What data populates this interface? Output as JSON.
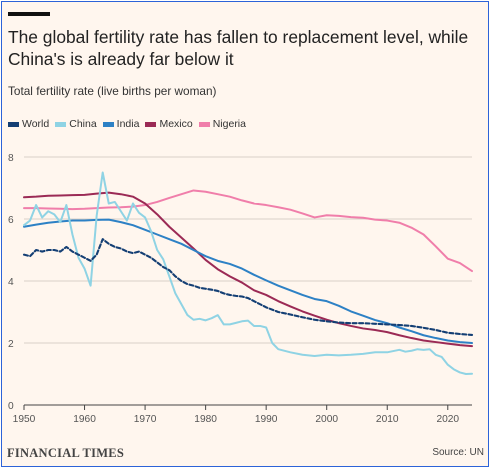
{
  "header": {
    "title": "The global fertility rate has fallen to replacement level, while China's is already far below it",
    "subtitle": "Total fertility rate (live births per woman)"
  },
  "footer": {
    "brand": "FINANCIAL TIMES",
    "source": "Source: UN"
  },
  "colors": {
    "background": "#fff6ee",
    "world": "#143f74",
    "china": "#8fd3e4",
    "india": "#2d81c5",
    "mexico": "#9b2a55",
    "nigeria": "#f07eaa",
    "text": "#222222",
    "grid": "#d9d0c8",
    "border": "#2d63d8"
  },
  "chart_data": {
    "type": "line",
    "title": "The global fertility rate has fallen to replacement level, while China's is already far below it",
    "subtitle": "Total fertility rate (live births per woman)",
    "xlabel": "",
    "ylabel": "Total fertility rate (live births per woman)",
    "xlim": [
      1950,
      2024
    ],
    "ylim": [
      0,
      8
    ],
    "xticks": [
      1950,
      1960,
      1970,
      1980,
      1990,
      2000,
      2010,
      2020
    ],
    "yticks": [
      0,
      2,
      4,
      6,
      8
    ],
    "legend": "top-left",
    "grid": true,
    "series": [
      {
        "name": "World",
        "color": "#143f74",
        "dash": true,
        "points": [
          [
            1950,
            4.85
          ],
          [
            1951,
            4.8
          ],
          [
            1952,
            5.0
          ],
          [
            1953,
            4.95
          ],
          [
            1954,
            5.0
          ],
          [
            1955,
            5.0
          ],
          [
            1956,
            4.95
          ],
          [
            1957,
            5.1
          ],
          [
            1958,
            4.95
          ],
          [
            1959,
            4.85
          ],
          [
            1960,
            4.75
          ],
          [
            1961,
            4.65
          ],
          [
            1962,
            4.85
          ],
          [
            1963,
            5.35
          ],
          [
            1964,
            5.2
          ],
          [
            1965,
            5.1
          ],
          [
            1966,
            5.05
          ],
          [
            1967,
            4.95
          ],
          [
            1968,
            4.9
          ],
          [
            1969,
            4.95
          ],
          [
            1970,
            4.85
          ],
          [
            1971,
            4.75
          ],
          [
            1972,
            4.6
          ],
          [
            1973,
            4.45
          ],
          [
            1974,
            4.35
          ],
          [
            1975,
            4.15
          ],
          [
            1976,
            4.0
          ],
          [
            1977,
            3.9
          ],
          [
            1978,
            3.85
          ],
          [
            1979,
            3.78
          ],
          [
            1980,
            3.75
          ],
          [
            1981,
            3.72
          ],
          [
            1982,
            3.68
          ],
          [
            1983,
            3.6
          ],
          [
            1984,
            3.55
          ],
          [
            1985,
            3.52
          ],
          [
            1986,
            3.5
          ],
          [
            1987,
            3.45
          ],
          [
            1988,
            3.35
          ],
          [
            1989,
            3.25
          ],
          [
            1990,
            3.15
          ],
          [
            1992,
            3.0
          ],
          [
            1994,
            2.92
          ],
          [
            1996,
            2.83
          ],
          [
            1998,
            2.75
          ],
          [
            2000,
            2.7
          ],
          [
            2002,
            2.66
          ],
          [
            2004,
            2.64
          ],
          [
            2006,
            2.64
          ],
          [
            2008,
            2.62
          ],
          [
            2010,
            2.6
          ],
          [
            2012,
            2.58
          ],
          [
            2014,
            2.55
          ],
          [
            2016,
            2.49
          ],
          [
            2018,
            2.42
          ],
          [
            2020,
            2.33
          ],
          [
            2022,
            2.29
          ],
          [
            2024,
            2.26
          ]
        ]
      },
      {
        "name": "China",
        "color": "#8fd3e4",
        "dash": false,
        "points": [
          [
            1950,
            5.8
          ],
          [
            1951,
            5.95
          ],
          [
            1952,
            6.45
          ],
          [
            1953,
            6.05
          ],
          [
            1954,
            6.25
          ],
          [
            1955,
            6.15
          ],
          [
            1956,
            5.9
          ],
          [
            1957,
            6.45
          ],
          [
            1958,
            5.5
          ],
          [
            1959,
            4.75
          ],
          [
            1960,
            4.4
          ],
          [
            1961,
            3.85
          ],
          [
            1962,
            6.1
          ],
          [
            1963,
            7.5
          ],
          [
            1964,
            6.5
          ],
          [
            1965,
            6.55
          ],
          [
            1966,
            6.25
          ],
          [
            1967,
            5.95
          ],
          [
            1968,
            6.5
          ],
          [
            1969,
            6.2
          ],
          [
            1970,
            6.05
          ],
          [
            1971,
            5.6
          ],
          [
            1972,
            5.0
          ],
          [
            1973,
            4.7
          ],
          [
            1974,
            4.15
          ],
          [
            1975,
            3.6
          ],
          [
            1976,
            3.25
          ],
          [
            1977,
            2.9
          ],
          [
            1978,
            2.75
          ],
          [
            1979,
            2.78
          ],
          [
            1980,
            2.73
          ],
          [
            1981,
            2.8
          ],
          [
            1982,
            2.9
          ],
          [
            1983,
            2.6
          ],
          [
            1984,
            2.6
          ],
          [
            1985,
            2.65
          ],
          [
            1986,
            2.7
          ],
          [
            1987,
            2.72
          ],
          [
            1988,
            2.55
          ],
          [
            1989,
            2.55
          ],
          [
            1990,
            2.5
          ],
          [
            1991,
            2.0
          ],
          [
            1992,
            1.8
          ],
          [
            1994,
            1.7
          ],
          [
            1996,
            1.62
          ],
          [
            1998,
            1.58
          ],
          [
            2000,
            1.62
          ],
          [
            2002,
            1.6
          ],
          [
            2004,
            1.62
          ],
          [
            2006,
            1.65
          ],
          [
            2008,
            1.7
          ],
          [
            2010,
            1.7
          ],
          [
            2011,
            1.74
          ],
          [
            2012,
            1.78
          ],
          [
            2013,
            1.72
          ],
          [
            2014,
            1.75
          ],
          [
            2015,
            1.8
          ],
          [
            2016,
            1.78
          ],
          [
            2017,
            1.8
          ],
          [
            2018,
            1.62
          ],
          [
            2019,
            1.55
          ],
          [
            2020,
            1.3
          ],
          [
            2021,
            1.15
          ],
          [
            2022,
            1.05
          ],
          [
            2023,
            1.0
          ],
          [
            2024,
            1.01
          ]
        ]
      },
      {
        "name": "India",
        "color": "#2d81c5",
        "dash": false,
        "points": [
          [
            1950,
            5.75
          ],
          [
            1952,
            5.82
          ],
          [
            1954,
            5.88
          ],
          [
            1956,
            5.92
          ],
          [
            1958,
            5.95
          ],
          [
            1960,
            5.95
          ],
          [
            1962,
            5.97
          ],
          [
            1964,
            5.98
          ],
          [
            1966,
            5.9
          ],
          [
            1968,
            5.8
          ],
          [
            1970,
            5.65
          ],
          [
            1972,
            5.5
          ],
          [
            1974,
            5.35
          ],
          [
            1976,
            5.2
          ],
          [
            1978,
            5.0
          ],
          [
            1980,
            4.8
          ],
          [
            1982,
            4.65
          ],
          [
            1984,
            4.55
          ],
          [
            1986,
            4.4
          ],
          [
            1988,
            4.2
          ],
          [
            1990,
            4.02
          ],
          [
            1992,
            3.85
          ],
          [
            1994,
            3.7
          ],
          [
            1996,
            3.55
          ],
          [
            1998,
            3.42
          ],
          [
            2000,
            3.35
          ],
          [
            2002,
            3.2
          ],
          [
            2004,
            3.02
          ],
          [
            2006,
            2.88
          ],
          [
            2008,
            2.74
          ],
          [
            2010,
            2.64
          ],
          [
            2012,
            2.5
          ],
          [
            2014,
            2.38
          ],
          [
            2016,
            2.25
          ],
          [
            2018,
            2.16
          ],
          [
            2020,
            2.08
          ],
          [
            2022,
            2.03
          ],
          [
            2024,
            2.0
          ]
        ]
      },
      {
        "name": "Mexico",
        "color": "#9b2a55",
        "dash": false,
        "points": [
          [
            1950,
            6.7
          ],
          [
            1952,
            6.72
          ],
          [
            1954,
            6.75
          ],
          [
            1956,
            6.76
          ],
          [
            1958,
            6.77
          ],
          [
            1960,
            6.78
          ],
          [
            1962,
            6.82
          ],
          [
            1964,
            6.85
          ],
          [
            1966,
            6.8
          ],
          [
            1968,
            6.72
          ],
          [
            1970,
            6.5
          ],
          [
            1972,
            6.15
          ],
          [
            1974,
            5.75
          ],
          [
            1976,
            5.4
          ],
          [
            1978,
            5.05
          ],
          [
            1980,
            4.68
          ],
          [
            1982,
            4.38
          ],
          [
            1984,
            4.15
          ],
          [
            1986,
            3.95
          ],
          [
            1988,
            3.7
          ],
          [
            1990,
            3.55
          ],
          [
            1992,
            3.35
          ],
          [
            1994,
            3.18
          ],
          [
            1996,
            3.02
          ],
          [
            1998,
            2.88
          ],
          [
            2000,
            2.75
          ],
          [
            2002,
            2.64
          ],
          [
            2004,
            2.55
          ],
          [
            2006,
            2.47
          ],
          [
            2008,
            2.42
          ],
          [
            2010,
            2.35
          ],
          [
            2012,
            2.25
          ],
          [
            2014,
            2.16
          ],
          [
            2016,
            2.08
          ],
          [
            2018,
            2.03
          ],
          [
            2020,
            1.98
          ],
          [
            2022,
            1.93
          ],
          [
            2024,
            1.9
          ]
        ]
      },
      {
        "name": "Nigeria",
        "color": "#f07eaa",
        "dash": false,
        "points": [
          [
            1950,
            6.35
          ],
          [
            1952,
            6.35
          ],
          [
            1954,
            6.34
          ],
          [
            1956,
            6.33
          ],
          [
            1958,
            6.32
          ],
          [
            1960,
            6.33
          ],
          [
            1962,
            6.35
          ],
          [
            1964,
            6.37
          ],
          [
            1966,
            6.38
          ],
          [
            1968,
            6.4
          ],
          [
            1970,
            6.45
          ],
          [
            1972,
            6.55
          ],
          [
            1974,
            6.68
          ],
          [
            1976,
            6.8
          ],
          [
            1978,
            6.92
          ],
          [
            1980,
            6.88
          ],
          [
            1982,
            6.8
          ],
          [
            1984,
            6.72
          ],
          [
            1986,
            6.6
          ],
          [
            1988,
            6.5
          ],
          [
            1990,
            6.45
          ],
          [
            1992,
            6.38
          ],
          [
            1994,
            6.3
          ],
          [
            1996,
            6.18
          ],
          [
            1998,
            6.05
          ],
          [
            2000,
            6.12
          ],
          [
            2002,
            6.1
          ],
          [
            2004,
            6.06
          ],
          [
            2006,
            6.04
          ],
          [
            2008,
            5.98
          ],
          [
            2010,
            5.95
          ],
          [
            2012,
            5.88
          ],
          [
            2014,
            5.72
          ],
          [
            2016,
            5.5
          ],
          [
            2018,
            5.12
          ],
          [
            2020,
            4.72
          ],
          [
            2022,
            4.58
          ],
          [
            2024,
            4.32
          ]
        ]
      }
    ]
  }
}
